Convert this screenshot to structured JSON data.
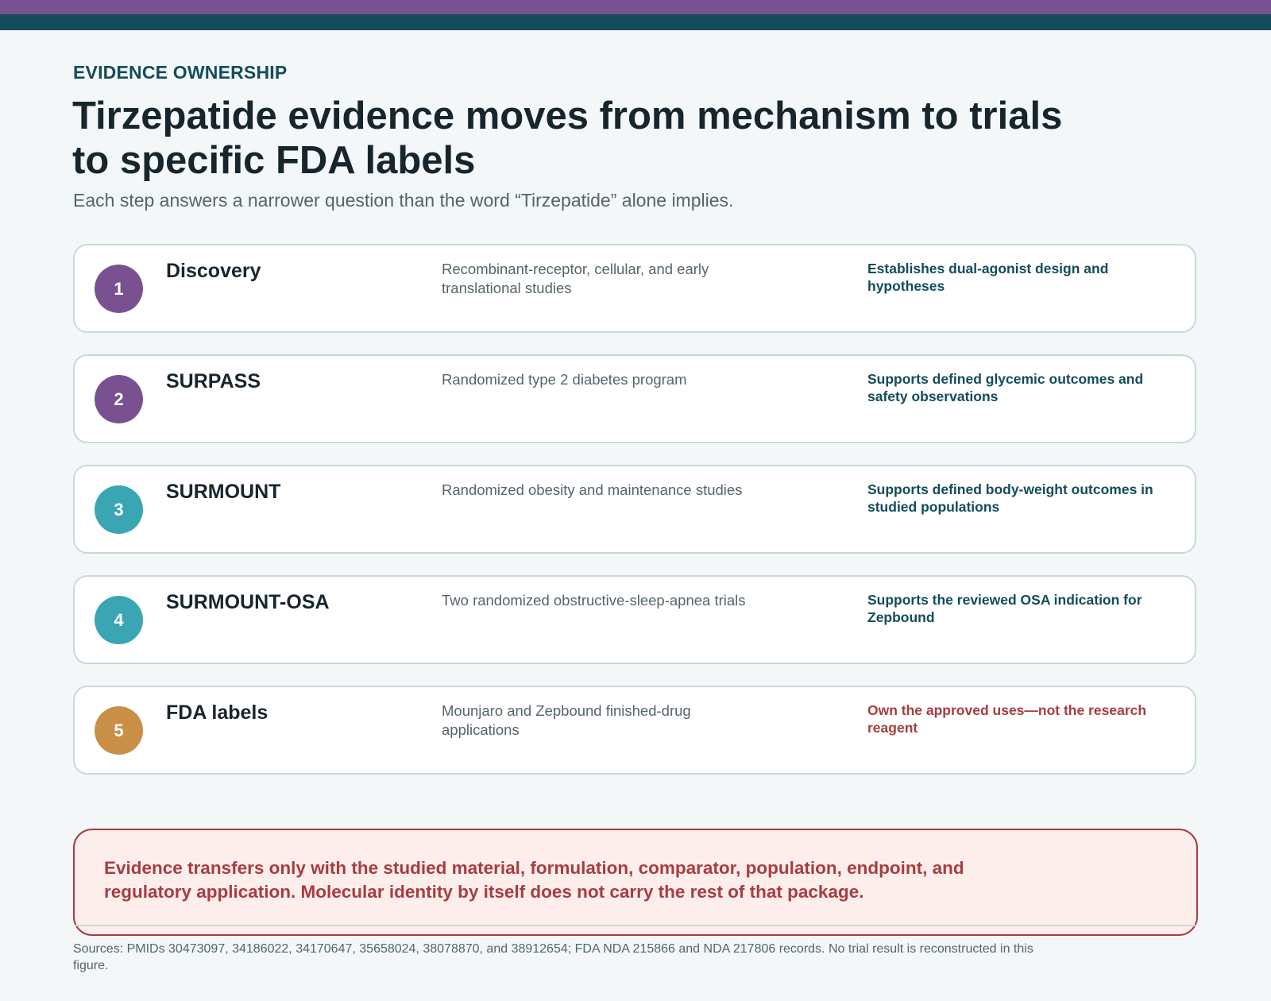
{
  "colors": {
    "purple": "#7a5190",
    "teal": "#3aa6b4",
    "gold": "#c98f46",
    "navy": "#134c5b",
    "alert": "#a83c3f"
  },
  "header": {
    "eyebrow": "EVIDENCE OWNERSHIP",
    "title": "Tirzepatide evidence moves from mechanism to trials to specific FDA labels",
    "subtitle": "Each step answers a narrower question than the word “Tirzepatide” alone implies."
  },
  "steps": [
    {
      "number": "1",
      "name": "Discovery",
      "description": "Recombinant-receptor, cellular, and early translational studies",
      "outcome": "Establishes dual-agonist design and hypotheses",
      "badge_color": "#7a5190"
    },
    {
      "number": "2",
      "name": "SURPASS",
      "description": "Randomized type 2 diabetes program",
      "outcome": "Supports defined glycemic outcomes and safety observations",
      "badge_color": "#7a5190"
    },
    {
      "number": "3",
      "name": "SURMOUNT",
      "description": "Randomized obesity and maintenance studies",
      "outcome": "Supports defined body-weight outcomes in studied populations",
      "badge_color": "#3aa6b4"
    },
    {
      "number": "4",
      "name": "SURMOUNT-OSA",
      "description": "Two randomized obstructive-sleep-apnea trials",
      "outcome": "Supports the reviewed OSA indication for Zepbound",
      "badge_color": "#3aa6b4"
    },
    {
      "number": "5",
      "name": "FDA labels",
      "description": "Mounjaro and Zepbound finished-drug applications",
      "outcome": "Own the approved uses—not the research reagent",
      "badge_color": "#c98f46"
    }
  ],
  "callout": {
    "text": "Evidence transfers only with the studied material, formulation, comparator, population, endpoint, and regulatory application. Molecular identity by itself does not carry the rest of that package."
  },
  "footer": {
    "sources": "Sources: PMIDs 30473097, 34186022, 34170647, 35658024, 38078870, and 38912654; FDA NDA 215866 and NDA 217806 records. No trial result is reconstructed in this figure."
  }
}
